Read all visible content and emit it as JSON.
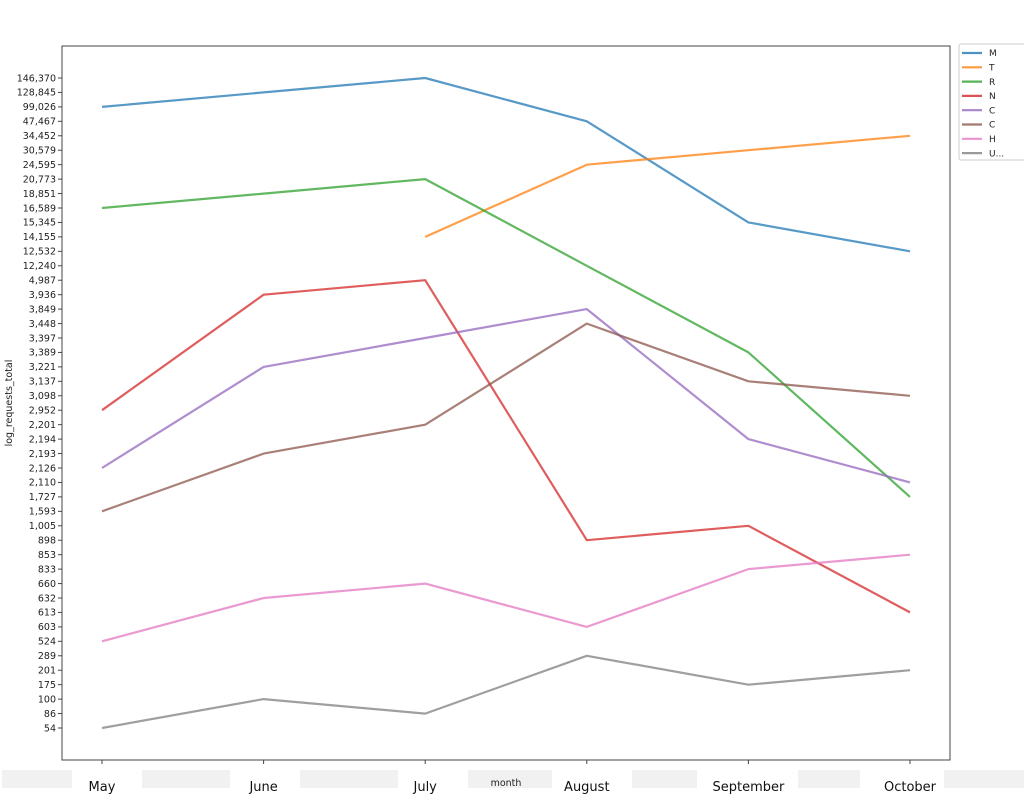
{
  "chart_data": {
    "type": "line",
    "xlabel": "month",
    "ylabel": "log_requests_total",
    "categories": [
      "May",
      "June",
      "July",
      "August",
      "September",
      "October"
    ],
    "y_ticks": [
      "54",
      "86",
      "100",
      "175",
      "201",
      "289",
      "524",
      "603",
      "613",
      "632",
      "660",
      "833",
      "853",
      "898",
      "1,005",
      "1,593",
      "1,727",
      "2,110",
      "2,126",
      "2,193",
      "2,194",
      "2,201",
      "2,952",
      "3,098",
      "3,137",
      "3,221",
      "3,389",
      "3,397",
      "3,448",
      "3,849",
      "3,936",
      "4,987",
      "12,240",
      "12,532",
      "14,155",
      "15,345",
      "16,589",
      "18,851",
      "20,773",
      "24,595",
      "30,579",
      "34,452",
      "47,467",
      "99,026",
      "128,845",
      "146,370"
    ],
    "series": [
      {
        "name": "M",
        "color": "#1f77b4",
        "values": [
          99026,
          128845,
          146370,
          47467,
          15345,
          12532
        ]
      },
      {
        "name": "T",
        "color": "#ff7f0e",
        "values": [
          null,
          null,
          14155,
          24595,
          30579,
          34452
        ]
      },
      {
        "name": "R",
        "color": "#2ca02c",
        "values": [
          16589,
          18851,
          20773,
          12240,
          3389,
          1727
        ]
      },
      {
        "name": "N",
        "color": "#d62728",
        "values": [
          2952,
          3936,
          4987,
          898,
          1005,
          613
        ]
      },
      {
        "name": "C",
        "color": "#9467bd",
        "values": [
          2126,
          3221,
          3397,
          3849,
          2194,
          2110
        ]
      },
      {
        "name": "C",
        "color": "#8c564b",
        "values": [
          1593,
          2193,
          2201,
          3448,
          3137,
          3098
        ]
      },
      {
        "name": "H",
        "color": "#e377c2",
        "values": [
          524,
          632,
          660,
          603,
          833,
          853
        ]
      },
      {
        "name": "U...",
        "color": "#7f7f7f",
        "values": [
          54,
          100,
          86,
          289,
          175,
          201
        ]
      }
    ]
  }
}
